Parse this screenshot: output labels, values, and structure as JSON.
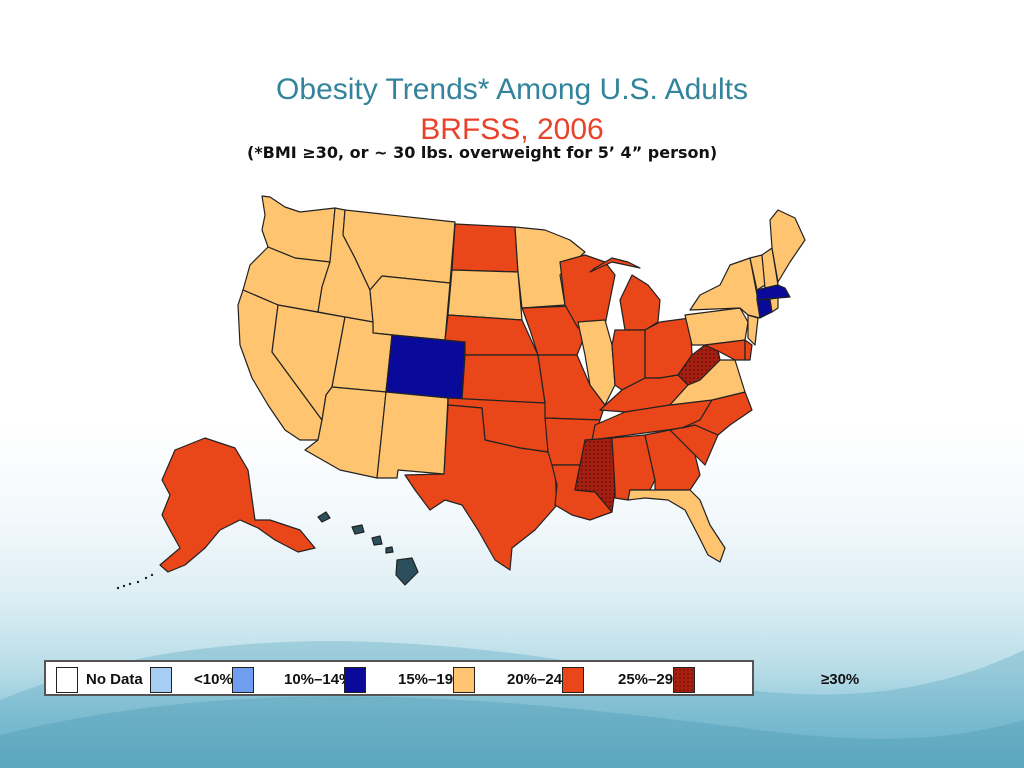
{
  "title": "Obesity Trends* Among U.S. Adults",
  "subtitle": "BRFSS, 2006",
  "note": "(*BMI ≥30, or ~ 30 lbs. overweight for 5’ 4” person)",
  "colors": {
    "no_data": "#ffffff",
    "lt10": "#a6cdf2",
    "c10_14": "#6f9df0",
    "c15_19": "#0a0a9a",
    "c20_24": "#fec470",
    "c25_29": "#e9461a",
    "ge30": "#a61f10",
    "hawaii": "#2c4f5e",
    "title": "#31849b",
    "subtitle": "#e8422a"
  },
  "legend": [
    {
      "label": "No Data",
      "color": "#ffffff"
    },
    {
      "label": "<10%",
      "color": "#a6cdf2"
    },
    {
      "label": "10%–14%",
      "color": "#6f9df0"
    },
    {
      "label": "15%–19%",
      "color": "#0a0a9a"
    },
    {
      "label": "20%–24%",
      "color": "#fec470"
    },
    {
      "label": "25%–29%",
      "color": "#e9461a"
    },
    {
      "label": "≥30%",
      "color": "#a61f10"
    }
  ],
  "states": {
    "WA": "20-24",
    "OR": "20-24",
    "CA": "20-24",
    "NV": "20-24",
    "ID": "20-24",
    "MT": "20-24",
    "WY": "20-24",
    "UT": "20-24",
    "AZ": "20-24",
    "NM": "20-24",
    "CO": "15-19",
    "ND": "25-29",
    "SD": "20-24",
    "NE": "25-29",
    "KS": "25-29",
    "OK": "25-29",
    "TX": "25-29",
    "MN": "20-24",
    "IA": "25-29",
    "MO": "25-29",
    "AR": "25-29",
    "LA": "25-29",
    "WI": "25-29",
    "IL": "20-24",
    "MI": "25-29",
    "IN": "25-29",
    "OH": "25-29",
    "KY": "25-29",
    "TN": "25-29",
    "MS": ">=30",
    "AL": "25-29",
    "GA": "25-29",
    "FL": "20-24",
    "SC": "25-29",
    "NC": "25-29",
    "VA": "20-24",
    "WV": ">=30",
    "MD": "25-29",
    "DE": "25-29",
    "PA": "20-24",
    "NJ": "20-24",
    "NY": "20-24",
    "CT": "15-19",
    "RI": "20-24",
    "MA": "15-19",
    "VT": "20-24",
    "NH": "20-24",
    "ME": "20-24",
    "AK": "25-29",
    "HI": "other"
  }
}
